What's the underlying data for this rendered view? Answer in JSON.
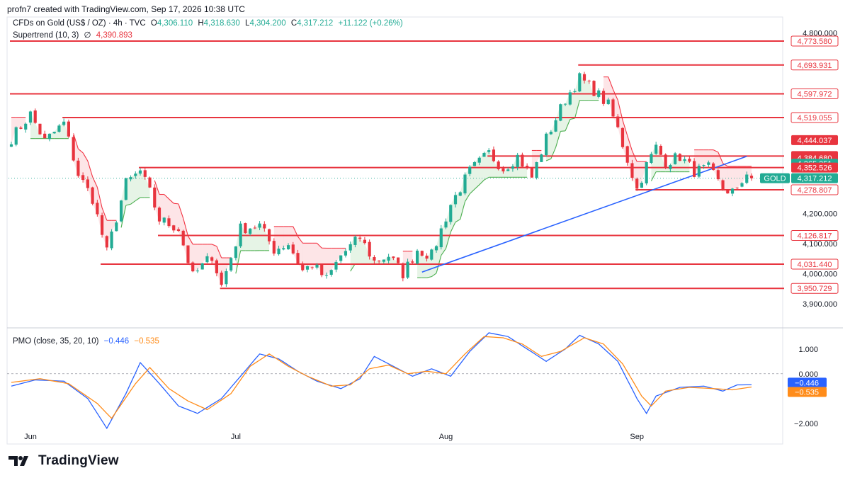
{
  "header": {
    "text": "profn7 created with TradingView.com, Sep 17, 2026 10:38 UTC"
  },
  "legend_main": {
    "symbol": "CFDs on Gold (US$ / OZ) · 4h · TVC",
    "o_label": "O",
    "o": "4,306.110",
    "h_label": "H",
    "h": "4,318.630",
    "l_label": "L",
    "l": "4,304.200",
    "c_label": "C",
    "c": "4,317.212",
    "change": "+11.122 (+0.26%)"
  },
  "legend_supertrend": {
    "name": "Supertrend (10, 3)",
    "symbol": "∅",
    "value": "4,390.893"
  },
  "legend_pmo": {
    "name": "PMO (close, 35, 20, 10)",
    "v1": "−0.446",
    "v2": "−0.535"
  },
  "footer": {
    "brand": "TradingView"
  },
  "colors": {
    "up": "#22ab94",
    "down": "#e8343e",
    "level": "#e8343e",
    "trendline": "#2962ff",
    "pmo": "#2962ff",
    "pmo_signal": "#ff8c1a",
    "supertrend_up": "#4caf50",
    "supertrend_down": "#f23645"
  },
  "chart_data": [
    {
      "type": "candlestick",
      "symbol": "CFDs on Gold (US$ / OZ)",
      "interval": "4h",
      "ylim": [
        3850,
        4830
      ],
      "y_ticks": [
        "4,800.000",
        "4,200.000",
        "4,100.000",
        "4,000.000",
        "3,900.000"
      ],
      "y_tick_values": [
        4800,
        4200,
        4100,
        4000,
        3900
      ],
      "x_ticks": [
        "Jun",
        "Jul",
        "Aug",
        "Sep"
      ],
      "x_tick_index": [
        4,
        47,
        91,
        131
      ],
      "candle_count": 156,
      "horizontal_levels": [
        {
          "label": "4,773.580",
          "value": 4773.58,
          "from_index": 0
        },
        {
          "label": "4,693.931",
          "value": 4693.931,
          "from_index": 119
        },
        {
          "label": "4,597.972",
          "value": 4597.972,
          "from_index": 0
        },
        {
          "label": "4,519.055",
          "value": 4519.055,
          "from_index": 11
        },
        {
          "label": "4,390.893",
          "value": 4390.893,
          "from_index": 100
        },
        {
          "label": "4,352.526",
          "value": 4352.526,
          "from_index": 27
        },
        {
          "label": "4,278.807",
          "value": 4278.807,
          "from_index": 131
        },
        {
          "label": "4,126.817",
          "value": 4126.817,
          "from_index": 31
        },
        {
          "label": "4,031.440",
          "value": 4031.44,
          "from_index": 19
        },
        {
          "label": "3,950.729",
          "value": 3950.729,
          "from_index": 44
        }
      ],
      "level_tags": [
        {
          "label": "4,773.580",
          "value": 4773.58,
          "style": "red"
        },
        {
          "label": "4,693.931",
          "value": 4693.931,
          "style": "red"
        },
        {
          "label": "4,597.972",
          "value": 4597.972,
          "style": "red"
        },
        {
          "label": "4,519.055",
          "value": 4519.055,
          "style": "red"
        },
        {
          "label": "4,444.037",
          "value": 4444.037,
          "style": "solid-red"
        },
        {
          "label": "4,390.893",
          "value": 4390.893,
          "style": "solid-red"
        },
        {
          "label": "4,384.680",
          "value": 4384.68,
          "style": "solid-red"
        },
        {
          "label": "4,365.351",
          "value": 4365.351,
          "style": "solid-green"
        },
        {
          "label": "4,352.526",
          "value": 4352.526,
          "style": "solid-red"
        },
        {
          "label": "4,317.212",
          "value": 4317.212,
          "style": "solid-green"
        },
        {
          "label": "4,278.807",
          "value": 4278.807,
          "style": "red"
        },
        {
          "label": "4,126.817",
          "value": 4126.817,
          "style": "red"
        },
        {
          "label": "4,031.440",
          "value": 4031.44,
          "style": "red"
        },
        {
          "label": "3,950.729",
          "value": 3950.729,
          "style": "red"
        }
      ],
      "symbol_tag": "GOLD",
      "trendline": {
        "from_index": 86,
        "from_value": 4005,
        "to_index": 154,
        "to_value": 4390
      },
      "waypoints": [
        [
          0,
          4450
        ],
        [
          4,
          4530
        ],
        [
          7,
          4440
        ],
        [
          11,
          4500
        ],
        [
          14,
          4330
        ],
        [
          17,
          4250
        ],
        [
          20,
          4070
        ],
        [
          24,
          4300
        ],
        [
          27,
          4340
        ],
        [
          29,
          4270
        ],
        [
          31,
          4180
        ],
        [
          35,
          4150
        ],
        [
          38,
          3990
        ],
        [
          42,
          4060
        ],
        [
          44,
          3960
        ],
        [
          48,
          4150
        ],
        [
          52,
          4160
        ],
        [
          55,
          4080
        ],
        [
          58,
          4100
        ],
        [
          61,
          4010
        ],
        [
          63,
          4030
        ],
        [
          66,
          3980
        ],
        [
          69,
          4060
        ],
        [
          73,
          4120
        ],
        [
          76,
          4040
        ],
        [
          79,
          4060
        ],
        [
          82,
          4000
        ],
        [
          85,
          4080
        ],
        [
          88,
          4060
        ],
        [
          92,
          4230
        ],
        [
          96,
          4340
        ],
        [
          100,
          4400
        ],
        [
          103,
          4350
        ],
        [
          106,
          4390
        ],
        [
          109,
          4320
        ],
        [
          112,
          4450
        ],
        [
          116,
          4580
        ],
        [
          119,
          4650
        ],
        [
          122,
          4610
        ],
        [
          125,
          4560
        ],
        [
          127,
          4480
        ],
        [
          129,
          4380
        ],
        [
          131,
          4280
        ],
        [
          133,
          4360
        ],
        [
          135,
          4420
        ],
        [
          137,
          4370
        ],
        [
          140,
          4390
        ],
        [
          143,
          4340
        ],
        [
          146,
          4350
        ],
        [
          149,
          4280
        ],
        [
          152,
          4270
        ],
        [
          154,
          4340
        ],
        [
          155,
          4317
        ]
      ]
    },
    {
      "type": "line",
      "name": "PMO (close, 35, 20, 10)",
      "ylim": [
        -2.35,
        1.65
      ],
      "y_ticks": [
        "1.000",
        "0.000",
        "−2.000"
      ],
      "y_tick_values": [
        1,
        0,
        -2
      ],
      "series": [
        {
          "name": "PMO",
          "last": -0.446,
          "waypoints": [
            [
              0,
              -0.5
            ],
            [
              5,
              -0.25
            ],
            [
              11,
              -0.3
            ],
            [
              16,
              -1.0
            ],
            [
              20,
              -2.2
            ],
            [
              24,
              -0.8
            ],
            [
              27,
              0.45
            ],
            [
              31,
              -0.4
            ],
            [
              35,
              -1.3
            ],
            [
              39,
              -1.6
            ],
            [
              44,
              -1.0
            ],
            [
              48,
              -0.1
            ],
            [
              52,
              0.8
            ],
            [
              56,
              0.6
            ],
            [
              60,
              0.1
            ],
            [
              64,
              -0.3
            ],
            [
              69,
              -0.6
            ],
            [
              73,
              -0.2
            ],
            [
              76,
              0.7
            ],
            [
              80,
              0.3
            ],
            [
              84,
              -0.1
            ],
            [
              88,
              0.2
            ],
            [
              92,
              -0.1
            ],
            [
              96,
              0.9
            ],
            [
              100,
              1.65
            ],
            [
              104,
              1.5
            ],
            [
              108,
              1.0
            ],
            [
              112,
              0.5
            ],
            [
              116,
              1.0
            ],
            [
              119,
              1.55
            ],
            [
              123,
              1.2
            ],
            [
              127,
              0.5
            ],
            [
              131,
              -1.0
            ],
            [
              133,
              -1.6
            ],
            [
              135,
              -0.9
            ],
            [
              140,
              -0.55
            ],
            [
              145,
              -0.5
            ],
            [
              149,
              -0.7
            ],
            [
              152,
              -0.45
            ],
            [
              155,
              -0.446
            ]
          ]
        },
        {
          "name": "Signal",
          "last": -0.535,
          "waypoints": [
            [
              0,
              -0.35
            ],
            [
              6,
              -0.2
            ],
            [
              12,
              -0.4
            ],
            [
              18,
              -1.2
            ],
            [
              21,
              -1.8
            ],
            [
              26,
              -0.4
            ],
            [
              29,
              0.25
            ],
            [
              33,
              -0.6
            ],
            [
              37,
              -1.1
            ],
            [
              41,
              -1.45
            ],
            [
              46,
              -0.8
            ],
            [
              50,
              0.3
            ],
            [
              54,
              0.8
            ],
            [
              58,
              0.3
            ],
            [
              62,
              -0.1
            ],
            [
              67,
              -0.5
            ],
            [
              71,
              -0.45
            ],
            [
              75,
              0.2
            ],
            [
              79,
              0.35
            ],
            [
              83,
              0.0
            ],
            [
              87,
              0.1
            ],
            [
              91,
              0.0
            ],
            [
              95,
              0.8
            ],
            [
              99,
              1.5
            ],
            [
              103,
              1.45
            ],
            [
              107,
              1.2
            ],
            [
              111,
              0.7
            ],
            [
              115,
              0.9
            ],
            [
              120,
              1.45
            ],
            [
              124,
              1.2
            ],
            [
              128,
              0.4
            ],
            [
              132,
              -0.9
            ],
            [
              134,
              -1.3
            ],
            [
              137,
              -0.7
            ],
            [
              142,
              -0.55
            ],
            [
              147,
              -0.6
            ],
            [
              151,
              -0.65
            ],
            [
              155,
              -0.535
            ]
          ]
        }
      ]
    }
  ]
}
